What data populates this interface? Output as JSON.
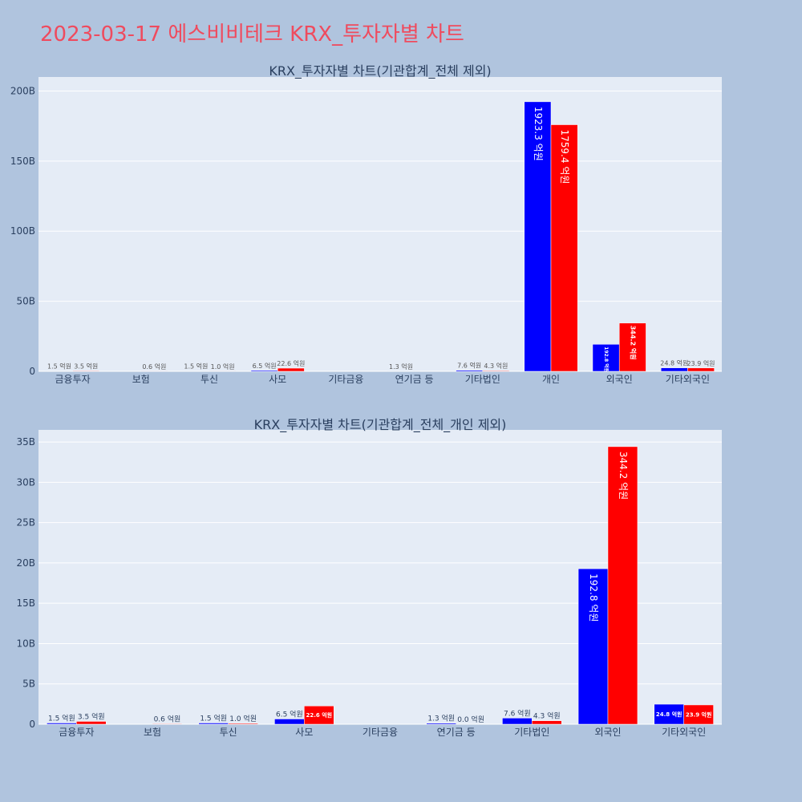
{
  "title": "2023-03-17 에스비비테크 KRX_투자자별 차트",
  "colors": {
    "background": "#b0c4de",
    "plot_bg": "#e5ecf6",
    "title": "#ef4b5e",
    "buy": "#0000ff",
    "sell": "#ff0000"
  },
  "chart_data": [
    {
      "type": "bar",
      "title": "KRX_투자자별 차트(기관합계_전체 제외)",
      "categories": [
        "금융투자",
        "보험",
        "투신",
        "사모",
        "기타금융",
        "연기금 등",
        "기타법인",
        "개인",
        "외국인",
        "기타외국인"
      ],
      "ylim": [
        0,
        210
      ],
      "yticks": [
        0,
        50,
        100,
        150,
        200
      ],
      "ytick_labels": [
        "0",
        "50B",
        "100B",
        "150B",
        "200B"
      ],
      "grid": true,
      "series": [
        {
          "color": "#0000ff",
          "values": [
            0.15,
            0,
            0.15,
            0.65,
            0,
            0.13,
            0.76,
            192.33,
            19.28,
            2.48
          ],
          "labels": [
            "1.5 억원",
            "",
            "1.5 억원",
            "6.5 억원",
            "",
            "1.3 억원",
            "7.6 억원",
            "1923.3 억원",
            "192.8 억원",
            "24.8 억원"
          ]
        },
        {
          "color": "#ff0000",
          "values": [
            0.35,
            0.06,
            0.1,
            2.26,
            0,
            0,
            0.43,
            175.94,
            34.42,
            2.39
          ],
          "labels": [
            "3.5 억원",
            "0.6 억원",
            "1.0 억원",
            "22.6 억원",
            "",
            "",
            "4.3 억원",
            "1759.4 억원",
            "344.2 억원",
            "23.9 억원"
          ]
        }
      ]
    },
    {
      "type": "bar",
      "title": "KRX_투자자별 차트(기관합계_전체_개인 제외)",
      "categories": [
        "금융투자",
        "보험",
        "투신",
        "사모",
        "기타금융",
        "연기금 등",
        "기타법인",
        "외국인",
        "기타외국인"
      ],
      "ylim": [
        0,
        36.5
      ],
      "yticks": [
        0,
        5,
        10,
        15,
        20,
        25,
        30,
        35
      ],
      "ytick_labels": [
        "0",
        "5B",
        "10B",
        "15B",
        "20B",
        "25B",
        "30B",
        "35B"
      ],
      "grid": true,
      "series": [
        {
          "color": "#0000ff",
          "values": [
            0.15,
            0,
            0.15,
            0.65,
            0,
            0.13,
            0.76,
            19.28,
            2.48
          ],
          "labels": [
            "1.5 억원",
            "",
            "1.5 억원",
            "6.5 억원",
            "",
            "1.3 억원",
            "7.6 억원",
            "192.8 억원",
            "24.8 억원"
          ]
        },
        {
          "color": "#ff0000",
          "values": [
            0.35,
            0.06,
            0.1,
            2.26,
            0,
            0.0,
            0.43,
            34.42,
            2.39
          ],
          "labels": [
            "3.5 억원",
            "0.6 억원",
            "1.0 억원",
            "22.6 억원",
            "",
            "0.0 억원",
            "4.3 억원",
            "344.2 억원",
            "23.9 억원"
          ]
        }
      ]
    }
  ]
}
